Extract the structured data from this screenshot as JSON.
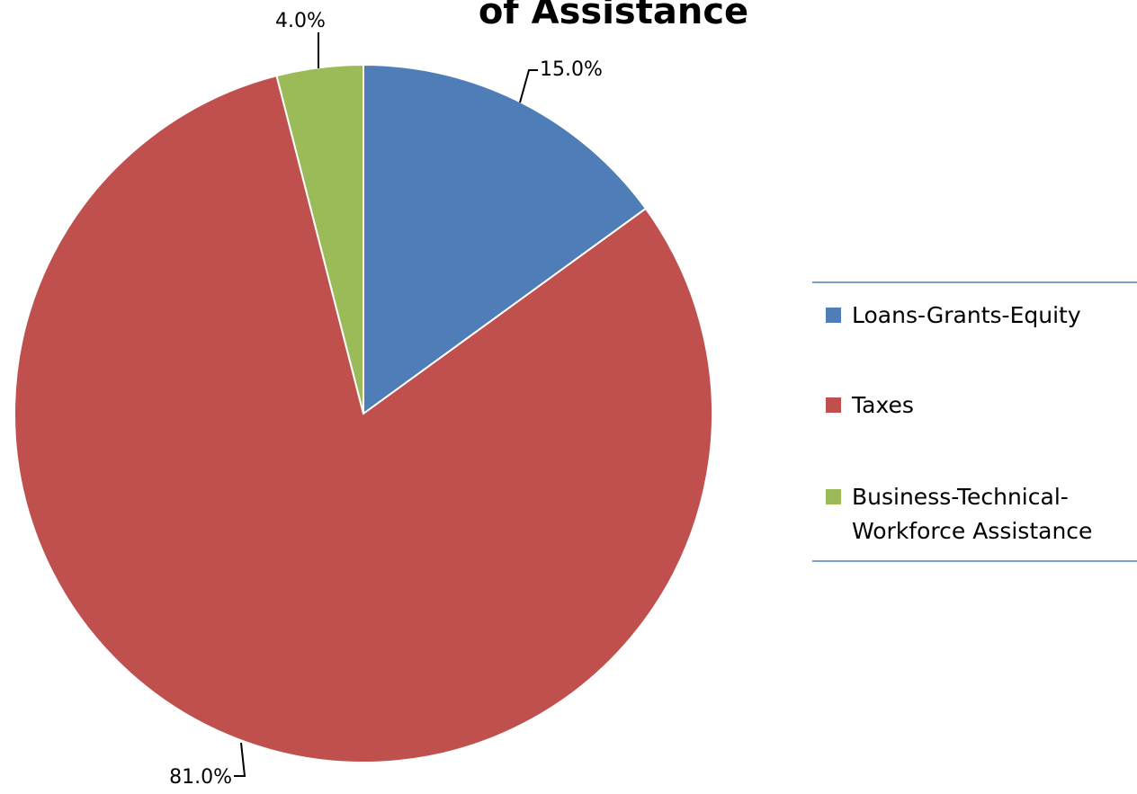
{
  "chart_data": {
    "type": "pie",
    "title": "of Assistance",
    "slices": [
      {
        "label": "Loans-Grants-Equity",
        "value": 15.0,
        "display": "15.0%",
        "color": "#4f7db8"
      },
      {
        "label": "Taxes",
        "value": 81.0,
        "display": "81.0%",
        "color": "#c0504d"
      },
      {
        "label": "Business-Technical-Workforce Assistance",
        "value": 4.0,
        "display": "4.0%",
        "color": "#9bbb59"
      }
    ],
    "legend": {
      "placement": "right",
      "entries": [
        {
          "lines": [
            "Loans-Grants-Equity"
          ]
        },
        {
          "lines": [
            "Taxes"
          ]
        },
        {
          "lines": [
            "Business-Technical-",
            "Workforce Assistance"
          ]
        }
      ]
    }
  }
}
